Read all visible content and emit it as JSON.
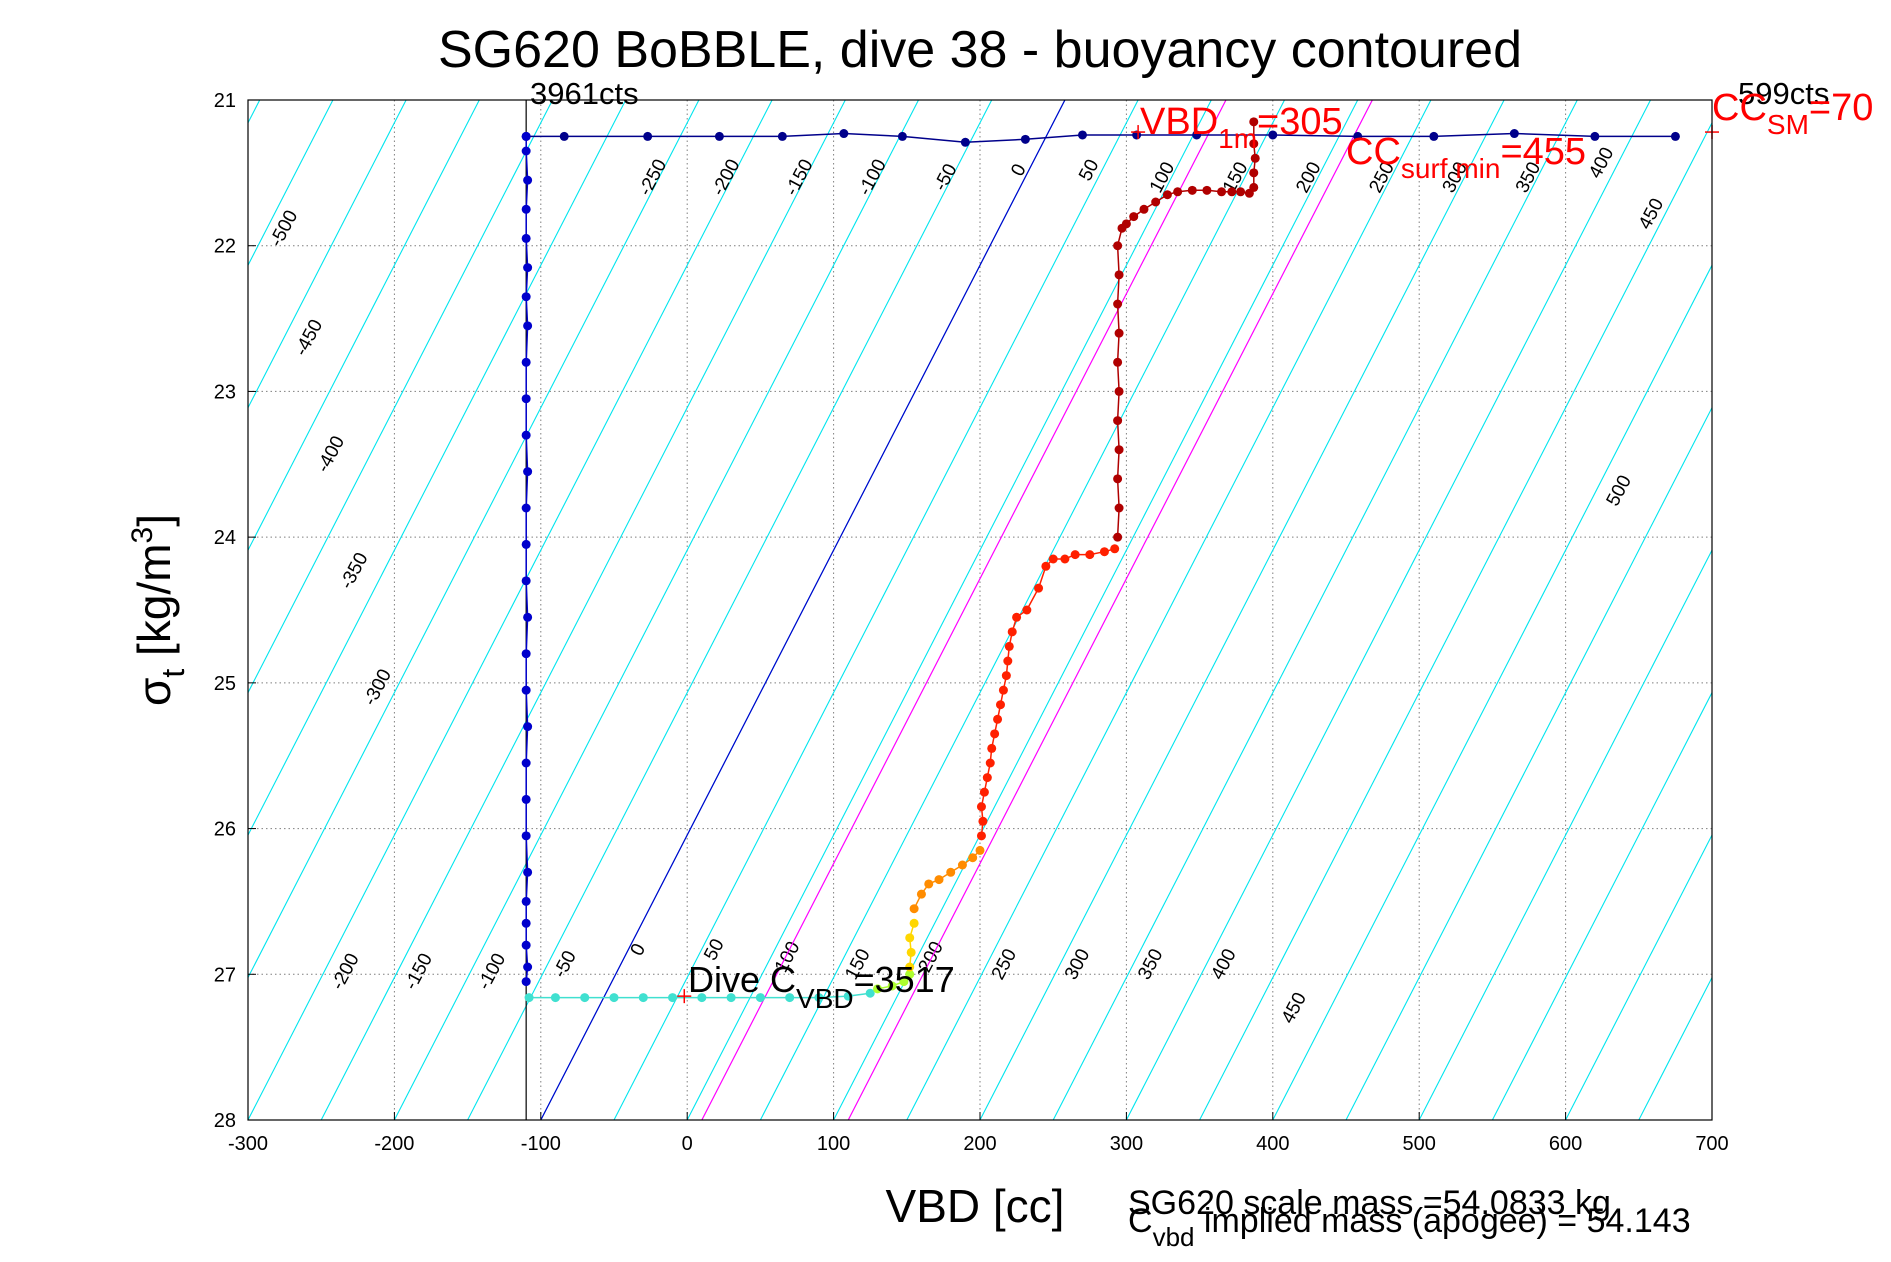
{
  "chart_data": {
    "type": "scatter",
    "title": "SG620 BoBBLE, dive 38 - buoyancy contoured",
    "xlabel": "VBD [cc]",
    "ylabel_main": "σ",
    "ylabel_sub": "t",
    "ylabel_unit": " [kg/m",
    "ylabel_sup": "3",
    "ylabel_close": "]",
    "xlim": [
      -300,
      700
    ],
    "ylim": [
      21,
      28
    ],
    "y_reversed": true,
    "grid": true,
    "xticks": [
      -300,
      -200,
      -100,
      0,
      100,
      200,
      300,
      400,
      500,
      600,
      700
    ],
    "yticks": [
      21,
      22,
      23,
      24,
      25,
      26,
      27,
      28
    ],
    "xtick_labels": [
      "-300",
      "-200",
      "-100",
      "0",
      "100",
      "200",
      "300",
      "400",
      "500",
      "600",
      "700"
    ],
    "ytick_labels": [
      "21",
      "22",
      "23",
      "24",
      "25",
      "26",
      "27",
      "28"
    ],
    "annotations": {
      "top_left_cts": "3961cts",
      "top_right_cts": "599cts",
      "vbd_main": "VBD",
      "vbd_sub": "1m",
      "vbd_val": "=305",
      "ccsurf_main": "CC",
      "ccsurf_sub": "surf min",
      "ccsurf_val": "=455",
      "ccsm_main": "CC",
      "ccsm_sub": "SM",
      "ccsm_val": "=70",
      "dive_main": "Dive C",
      "dive_sub": "VBD",
      "dive_val": "=3517",
      "scale_mass": "SG620 scale mass =54.0833 kg",
      "implied_main": "C",
      "implied_sub": "vbd",
      "implied_rest": " implied mass (apogee) = 54.143"
    },
    "contours": {
      "color": "#00e5ee",
      "levels": [
        -500,
        -450,
        -400,
        -350,
        -300,
        -250,
        -200,
        -150,
        -100,
        -50,
        0,
        50,
        100,
        150,
        200,
        250,
        300,
        350,
        400,
        450,
        500
      ],
      "labels_upper": [
        {
          "text": "-500",
          "x": -272,
          "y": 21.9
        },
        {
          "text": "-450",
          "x": -255,
          "y": 22.65
        },
        {
          "text": "-400",
          "x": -240,
          "y": 23.45
        },
        {
          "text": "-350",
          "x": -224,
          "y": 24.25
        },
        {
          "text": "-300",
          "x": -208,
          "y": 25.05
        },
        {
          "text": "-250",
          "x": -20,
          "y": 21.55
        },
        {
          "text": "-200",
          "x": 30,
          "y": 21.55
        },
        {
          "text": "-150",
          "x": 80,
          "y": 21.55
        },
        {
          "text": "-100",
          "x": 130,
          "y": 21.55
        },
        {
          "text": "-50",
          "x": 180,
          "y": 21.55
        },
        {
          "text": "0",
          "x": 230,
          "y": 21.5
        },
        {
          "text": "50",
          "x": 278,
          "y": 21.5
        },
        {
          "text": "100",
          "x": 328,
          "y": 21.55
        },
        {
          "text": "150",
          "x": 378,
          "y": 21.55
        },
        {
          "text": "200",
          "x": 428,
          "y": 21.55
        },
        {
          "text": "250",
          "x": 478,
          "y": 21.55
        },
        {
          "text": "300",
          "x": 528,
          "y": 21.55
        },
        {
          "text": "350",
          "x": 578,
          "y": 21.55
        },
        {
          "text": "400",
          "x": 628,
          "y": 21.45
        },
        {
          "text": "450",
          "x": 662,
          "y": 21.8
        },
        {
          "text": "500",
          "x": 640,
          "y": 23.7
        }
      ],
      "labels_lower": [
        {
          "text": "-200",
          "x": -230,
          "y": 27.0
        },
        {
          "text": "-150",
          "x": -180,
          "y": 27.0
        },
        {
          "text": "-100",
          "x": -130,
          "y": 27.0
        },
        {
          "text": "-50",
          "x": -80,
          "y": 26.95
        },
        {
          "text": "0",
          "x": -30,
          "y": 26.85
        },
        {
          "text": "50",
          "x": 22,
          "y": 26.85
        },
        {
          "text": "100",
          "x": 72,
          "y": 26.9
        },
        {
          "text": "150",
          "x": 120,
          "y": 26.95
        },
        {
          "text": "200",
          "x": 170,
          "y": 26.9
        },
        {
          "text": "250",
          "x": 220,
          "y": 26.95
        },
        {
          "text": "300",
          "x": 270,
          "y": 26.95
        },
        {
          "text": "350",
          "x": 320,
          "y": 26.95
        },
        {
          "text": "400",
          "x": 370,
          "y": 26.95
        },
        {
          "text": "450",
          "x": 418,
          "y": 27.25
        }
      ]
    },
    "reference_lines": [
      {
        "name": "VBD_1m line",
        "color": "#0000cc",
        "x": [
          -100,
          258
        ],
        "y": [
          28,
          21
        ]
      },
      {
        "name": "magenta line 1",
        "color": "#ff00ff",
        "x": [
          10,
          368
        ],
        "y": [
          28,
          21
        ]
      },
      {
        "name": "magenta line 2",
        "color": "#ff00ff",
        "x": [
          110,
          468
        ],
        "y": [
          28,
          21
        ]
      }
    ],
    "vertical_line": {
      "x": -110,
      "y": [
        21,
        28
      ],
      "color": "#000000"
    },
    "markers": [
      {
        "name": "CC_SM",
        "x": 700,
        "y": 21.22,
        "color": "#ff0000"
      },
      {
        "name": "VBD_1m",
        "x": 308,
        "y": 21.22,
        "color": "#ff0000"
      },
      {
        "name": "Dive C_VBD",
        "x": -2,
        "y": 27.15,
        "color": "#ff0000"
      }
    ],
    "series": [
      {
        "name": "",
        "color": "#00008b",
        "x": [
          -110,
          -84,
          -27,
          22,
          65,
          107,
          147,
          190,
          231,
          270,
          307,
          348,
          400,
          458,
          510,
          565,
          620,
          675
        ],
        "y": [
          21.25,
          21.25,
          21.25,
          21.25,
          21.25,
          21.23,
          21.25,
          21.29,
          21.27,
          21.24,
          21.24,
          21.24,
          21.24,
          21.25,
          21.25,
          21.23,
          21.25,
          21.25
        ]
      },
      {
        "name": "",
        "color": "#0000cc",
        "x": [
          -110,
          -110,
          -109,
          -110,
          -110,
          -109,
          -110,
          -109,
          -110,
          -110,
          -110,
          -109,
          -110,
          -110,
          -110,
          -109,
          -110,
          -110,
          -109,
          -110,
          -110,
          -110,
          -109,
          -110,
          -110,
          -110,
          -109,
          -110
        ],
        "y": [
          21.25,
          21.35,
          21.55,
          21.75,
          21.95,
          22.15,
          22.35,
          22.55,
          22.8,
          23.05,
          23.3,
          23.55,
          23.8,
          24.05,
          24.3,
          24.55,
          24.8,
          25.05,
          25.3,
          25.55,
          25.8,
          26.05,
          26.3,
          26.5,
          26.65,
          26.8,
          26.95,
          27.05
        ]
      },
      {
        "name": "",
        "color": "#40e0d0",
        "x": [
          -108,
          -90,
          -70,
          -50,
          -30,
          -10,
          10,
          30,
          50,
          70,
          90,
          110,
          125
        ],
        "y": [
          27.16,
          27.16,
          27.16,
          27.16,
          27.16,
          27.16,
          27.16,
          27.16,
          27.16,
          27.16,
          27.16,
          27.15,
          27.13
        ]
      },
      {
        "name": "",
        "color": "#adff2f",
        "x": [
          130,
          140,
          148,
          152
        ],
        "y": [
          27.1,
          27.08,
          27.05,
          27.0
        ]
      },
      {
        "name": "",
        "color": "#ffd700",
        "x": [
          152,
          153,
          152,
          155
        ],
        "y": [
          26.95,
          26.85,
          26.75,
          26.65
        ]
      },
      {
        "name": "",
        "color": "#ff8c00",
        "x": [
          155,
          160,
          165,
          172,
          180,
          188,
          195,
          200
        ],
        "y": [
          26.55,
          26.45,
          26.38,
          26.35,
          26.3,
          26.25,
          26.2,
          26.15
        ]
      },
      {
        "name": "",
        "color": "#ff2000",
        "x": [
          201,
          202,
          201,
          203,
          205,
          207,
          208,
          210,
          212,
          214,
          216,
          218,
          219,
          220,
          222,
          225,
          232,
          240,
          245,
          250,
          258,
          265,
          275,
          285,
          292
        ],
        "y": [
          26.05,
          25.95,
          25.85,
          25.75,
          25.65,
          25.55,
          25.45,
          25.35,
          25.25,
          25.15,
          25.05,
          24.95,
          24.85,
          24.75,
          24.65,
          24.55,
          24.5,
          24.35,
          24.2,
          24.15,
          24.15,
          24.12,
          24.12,
          24.1,
          24.08
        ]
      },
      {
        "name": "",
        "color": "#b00000",
        "x": [
          294,
          295,
          294,
          295,
          294,
          295,
          294,
          295,
          294,
          295,
          294,
          297,
          300,
          305,
          312,
          320,
          328,
          335,
          345,
          355,
          365,
          372,
          378,
          384,
          387,
          387,
          388,
          387,
          387
        ],
        "y": [
          24.0,
          23.8,
          23.6,
          23.4,
          23.2,
          23.0,
          22.8,
          22.6,
          22.4,
          22.2,
          22.0,
          21.88,
          21.85,
          21.8,
          21.75,
          21.7,
          21.65,
          21.63,
          21.62,
          21.62,
          21.63,
          21.63,
          21.63,
          21.64,
          21.6,
          21.5,
          21.4,
          21.3,
          21.15
        ]
      }
    ]
  }
}
